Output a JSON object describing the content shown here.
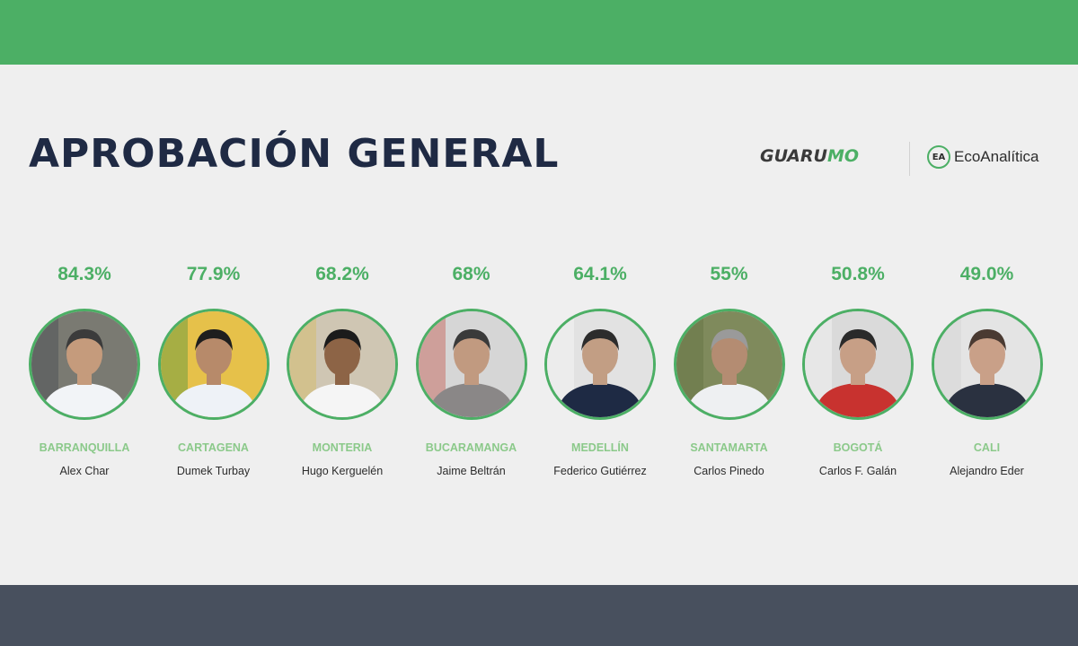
{
  "header": {
    "title": "APROBACIÓN GENERAL",
    "logos": {
      "guarumo_part1": "GUARU",
      "guarumo_part2": "MO",
      "eco_badge": "EA",
      "eco_text": "EcoAnalítica"
    }
  },
  "colors": {
    "accent_green": "#4caf65",
    "city_green": "#8bc98a",
    "title_navy": "#1f2a44",
    "footer_slate": "#48505e",
    "background": "#efefef"
  },
  "mayors": [
    {
      "approval": "84.3%",
      "city": "BARRANQUILLA",
      "name": "Alex Char",
      "photo_bg": "#7a7a72",
      "skin": "#c59b7c",
      "hair": "#3b3b3b",
      "shirt": "#f2f4f7",
      "accent": "#3a3f4a"
    },
    {
      "approval": "77.9%",
      "city": "CARTAGENA",
      "name": "Dumek Turbay",
      "photo_bg": "#e6c14a",
      "skin": "#b78a6a",
      "hair": "#1e1e1e",
      "shirt": "#eef2f7",
      "accent": "#2e8b3a"
    },
    {
      "approval": "68.2%",
      "city": "MONTERIA",
      "name": "Hugo Kerguelén",
      "photo_bg": "#cfc6b3",
      "skin": "#8d6446",
      "hair": "#1b1b1b",
      "shirt": "#f5f5f5",
      "accent": "#d8b84a"
    },
    {
      "approval": "68%",
      "city": "BUCARAMANGA",
      "name": "Jaime Beltrán",
      "photo_bg": "#d6d6d6",
      "skin": "#c19a80",
      "hair": "#3a3a3a",
      "shirt": "#8a8787",
      "accent": "#c0392b"
    },
    {
      "approval": "64.1%",
      "city": "MEDELLÍN",
      "name": "Federico Gutiérrez",
      "photo_bg": "#e2e2e2",
      "skin": "#c29e84",
      "hair": "#2c2c2c",
      "shirt": "#1e2a44",
      "accent": "#ffffff"
    },
    {
      "approval": "55%",
      "city": "SANTAMARTA",
      "name": "Carlos Pinedo",
      "photo_bg": "#7f8a5c",
      "skin": "#b48c72",
      "hair": "#9a9a9a",
      "shirt": "#eef0f2",
      "accent": "#5d6b3a"
    },
    {
      "approval": "50.8%",
      "city": "BOGOTÁ",
      "name": "Carlos F. Galán",
      "photo_bg": "#dadada",
      "skin": "#c79f86",
      "hair": "#2a2a2a",
      "shirt": "#c8322f",
      "accent": "#ffffff"
    },
    {
      "approval": "49.0%",
      "city": "CALI",
      "name": "Alejandro Eder",
      "photo_bg": "#e4e4e4",
      "skin": "#c9a088",
      "hair": "#4a3a32",
      "shirt": "#2a3140",
      "accent": "#cfcfcf"
    }
  ]
}
